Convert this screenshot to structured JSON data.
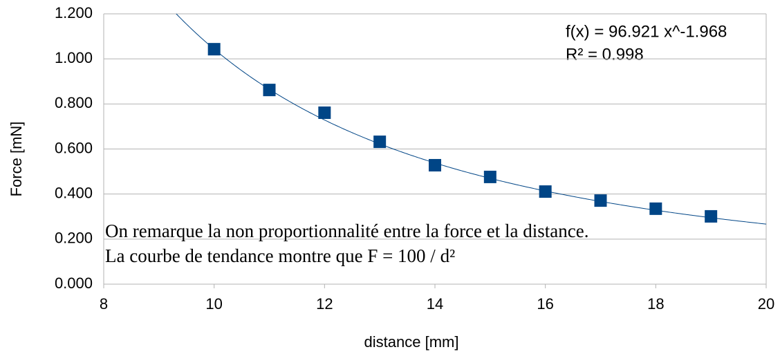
{
  "chart_data": {
    "type": "scatter",
    "x": [
      10,
      11,
      12,
      13,
      14,
      15,
      16,
      17,
      18,
      19
    ],
    "values": [
      1.043,
      0.862,
      0.761,
      0.632,
      0.528,
      0.476,
      0.411,
      0.371,
      0.335,
      0.301
    ],
    "color": "#004586",
    "xlabel": "distance [mm]",
    "ylabel": "Force [mN]",
    "xlim": [
      8,
      20
    ],
    "xticks": [
      8,
      10,
      12,
      14,
      16,
      18,
      20
    ],
    "ylim": [
      0,
      1.2
    ],
    "yticks": [
      {
        "value": 0,
        "label": "0.000"
      },
      {
        "value": 0.2,
        "label": "0.200"
      },
      {
        "value": 0.4,
        "label": "0.400"
      },
      {
        "value": 0.6,
        "label": "0.600"
      },
      {
        "value": 0.8,
        "label": "0.800"
      },
      {
        "value": 1,
        "label": "1.000"
      },
      {
        "value": 1.2,
        "label": "1.200"
      }
    ],
    "grid": true,
    "trendline": {
      "type": "power",
      "coefficient": 96.921,
      "exponent": -1.968,
      "color": "#004586",
      "label": "f(x) = 96.921 x^-1.968",
      "r2_label": "R² = 0.998"
    },
    "annotations": [
      "On remarque la non proportionnalité entre la force et la distance.",
      "La courbe de tendance montre que F = 100 / d²"
    ]
  }
}
